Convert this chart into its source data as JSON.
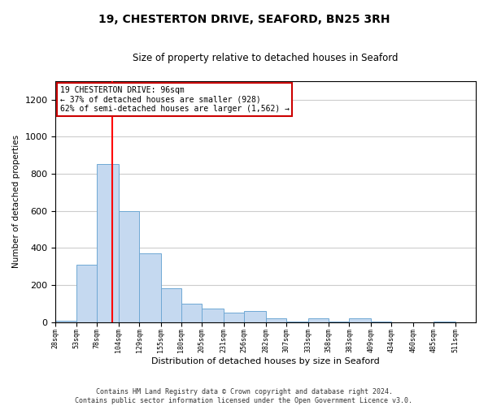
{
  "title": "19, CHESTERTON DRIVE, SEAFORD, BN25 3RH",
  "subtitle": "Size of property relative to detached houses in Seaford",
  "xlabel": "Distribution of detached houses by size in Seaford",
  "ylabel": "Number of detached properties",
  "bar_color": "#c5d9f0",
  "bar_edge_color": "#6fa8d4",
  "property_line_x": 96,
  "bin_edges": [
    28,
    53,
    78,
    104,
    129,
    155,
    180,
    205,
    231,
    256,
    282,
    307,
    333,
    358,
    383,
    409,
    434,
    460,
    485,
    511,
    536
  ],
  "bar_heights": [
    10,
    310,
    855,
    600,
    370,
    185,
    100,
    75,
    50,
    60,
    20,
    5,
    20,
    5,
    20,
    5,
    0,
    0,
    5,
    0
  ],
  "ylim": [
    0,
    1300
  ],
  "yticks": [
    0,
    200,
    400,
    600,
    800,
    1000,
    1200
  ],
  "annotation_text": "19 CHESTERTON DRIVE: 96sqm\n← 37% of detached houses are smaller (928)\n62% of semi-detached houses are larger (1,562) →",
  "annotation_box_color": "#ffffff",
  "annotation_box_edge": "#cc0000",
  "footer_line1": "Contains HM Land Registry data © Crown copyright and database right 2024.",
  "footer_line2": "Contains public sector information licensed under the Open Government Licence v3.0.",
  "bg_color": "#ffffff",
  "grid_color": "#cccccc"
}
